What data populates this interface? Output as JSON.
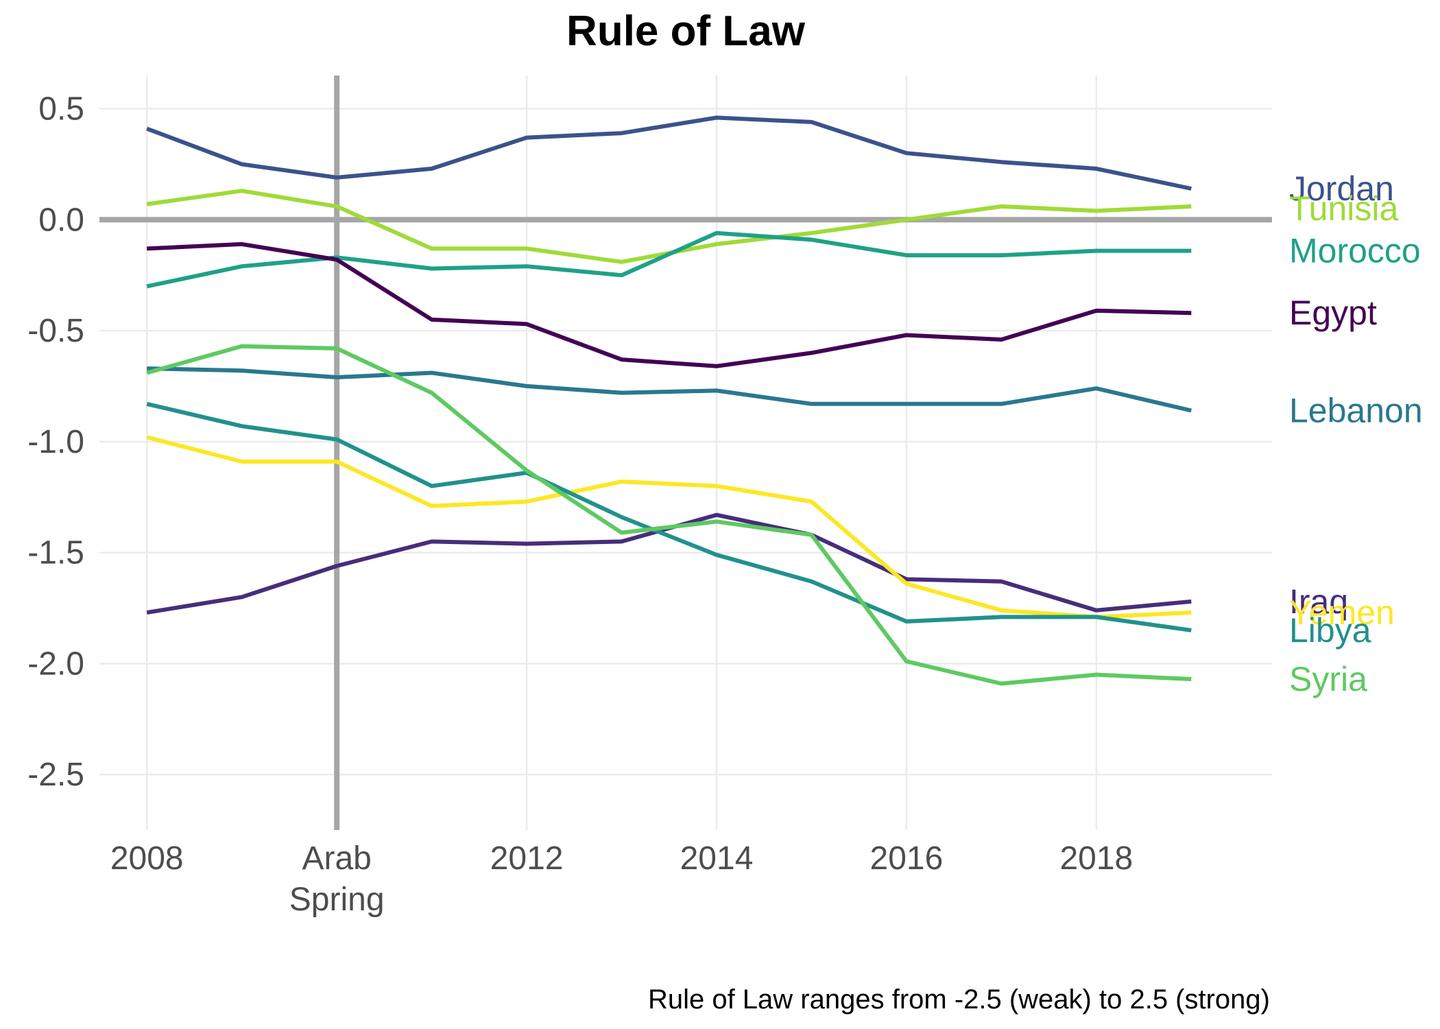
{
  "chart_data": {
    "type": "line",
    "title": "Rule of Law",
    "caption": "Rule of Law ranges from -2.5 (weak) to 2.5 (strong)",
    "xlabel": "",
    "ylabel": "",
    "xlim": [
      2008,
      2019
    ],
    "ylim": [
      -2.75,
      0.65
    ],
    "x_ticks": [
      {
        "value": 2008,
        "lines": [
          "2008"
        ]
      },
      {
        "value": 2010,
        "lines": [
          "Arab",
          "Spring"
        ]
      },
      {
        "value": 2012,
        "lines": [
          "2012"
        ]
      },
      {
        "value": 2014,
        "lines": [
          "2014"
        ]
      },
      {
        "value": 2016,
        "lines": [
          "2016"
        ]
      },
      {
        "value": 2018,
        "lines": [
          "2018"
        ]
      }
    ],
    "y_ticks": [
      {
        "value": 0.5,
        "label": "0.5"
      },
      {
        "value": 0.0,
        "label": "0.0"
      },
      {
        "value": -0.5,
        "label": "-0.5"
      },
      {
        "value": -1.0,
        "label": "-1.0"
      },
      {
        "value": -1.5,
        "label": "-1.5"
      },
      {
        "value": -2.0,
        "label": "-2.0"
      },
      {
        "value": -2.5,
        "label": "-2.5"
      }
    ],
    "reference_lines": {
      "horizontal": 0.0,
      "vertical": 2010,
      "color": "#a6a6a6"
    },
    "grid": true,
    "legend": "direct labels at right end of lines",
    "x": [
      2008,
      2009,
      2010,
      2011,
      2012,
      2013,
      2014,
      2015,
      2016,
      2017,
      2018,
      2019
    ],
    "series": [
      {
        "name": "Jordan",
        "color": "#3b528b",
        "label_y": 0.14,
        "values": [
          0.41,
          0.25,
          0.19,
          0.23,
          0.37,
          0.39,
          0.46,
          0.44,
          0.3,
          0.26,
          0.23,
          0.14
        ]
      },
      {
        "name": "Tunisia",
        "color": "#a0da39",
        "label_y": 0.05,
        "values": [
          0.07,
          0.13,
          0.06,
          -0.13,
          -0.13,
          -0.19,
          -0.11,
          -0.06,
          0.0,
          0.06,
          0.04,
          0.06
        ]
      },
      {
        "name": "Morocco",
        "color": "#1fa187",
        "label_y": -0.14,
        "values": [
          -0.3,
          -0.21,
          -0.17,
          -0.22,
          -0.21,
          -0.25,
          -0.06,
          -0.09,
          -0.16,
          -0.16,
          -0.14,
          -0.14
        ]
      },
      {
        "name": "Egypt",
        "color": "#440154",
        "label_y": -0.42,
        "values": [
          -0.13,
          -0.11,
          -0.18,
          -0.45,
          -0.47,
          -0.63,
          -0.66,
          -0.6,
          -0.52,
          -0.54,
          -0.41,
          -0.42
        ]
      },
      {
        "name": "Lebanon",
        "color": "#2a788e",
        "label_y": -0.86,
        "values": [
          -0.67,
          -0.68,
          -0.71,
          -0.69,
          -0.75,
          -0.78,
          -0.77,
          -0.83,
          -0.83,
          -0.83,
          -0.76,
          -0.86
        ]
      },
      {
        "name": "Iraq",
        "color": "#472d7b",
        "label_y": -1.72,
        "values": [
          -1.77,
          -1.7,
          -1.56,
          -1.45,
          -1.46,
          -1.45,
          -1.33,
          -1.42,
          -1.62,
          -1.63,
          -1.76,
          -1.72
        ]
      },
      {
        "name": "Yemen",
        "color": "#fde725",
        "label_y": -1.77,
        "values": [
          -0.98,
          -1.09,
          -1.09,
          -1.29,
          -1.27,
          -1.18,
          -1.2,
          -1.27,
          -1.64,
          -1.76,
          -1.79,
          -1.77
        ]
      },
      {
        "name": "Libya",
        "color": "#21918c",
        "label_y": -1.85,
        "values": [
          -0.83,
          -0.93,
          -0.99,
          -1.2,
          -1.14,
          -1.34,
          -1.51,
          -1.63,
          -1.81,
          -1.79,
          -1.79,
          -1.85
        ]
      },
      {
        "name": "Syria",
        "color": "#5ec962",
        "label_y": -2.07,
        "values": [
          -0.69,
          -0.57,
          -0.58,
          -0.78,
          -1.13,
          -1.41,
          -1.36,
          -1.42,
          -1.99,
          -2.09,
          -2.05,
          -2.07
        ]
      }
    ]
  }
}
